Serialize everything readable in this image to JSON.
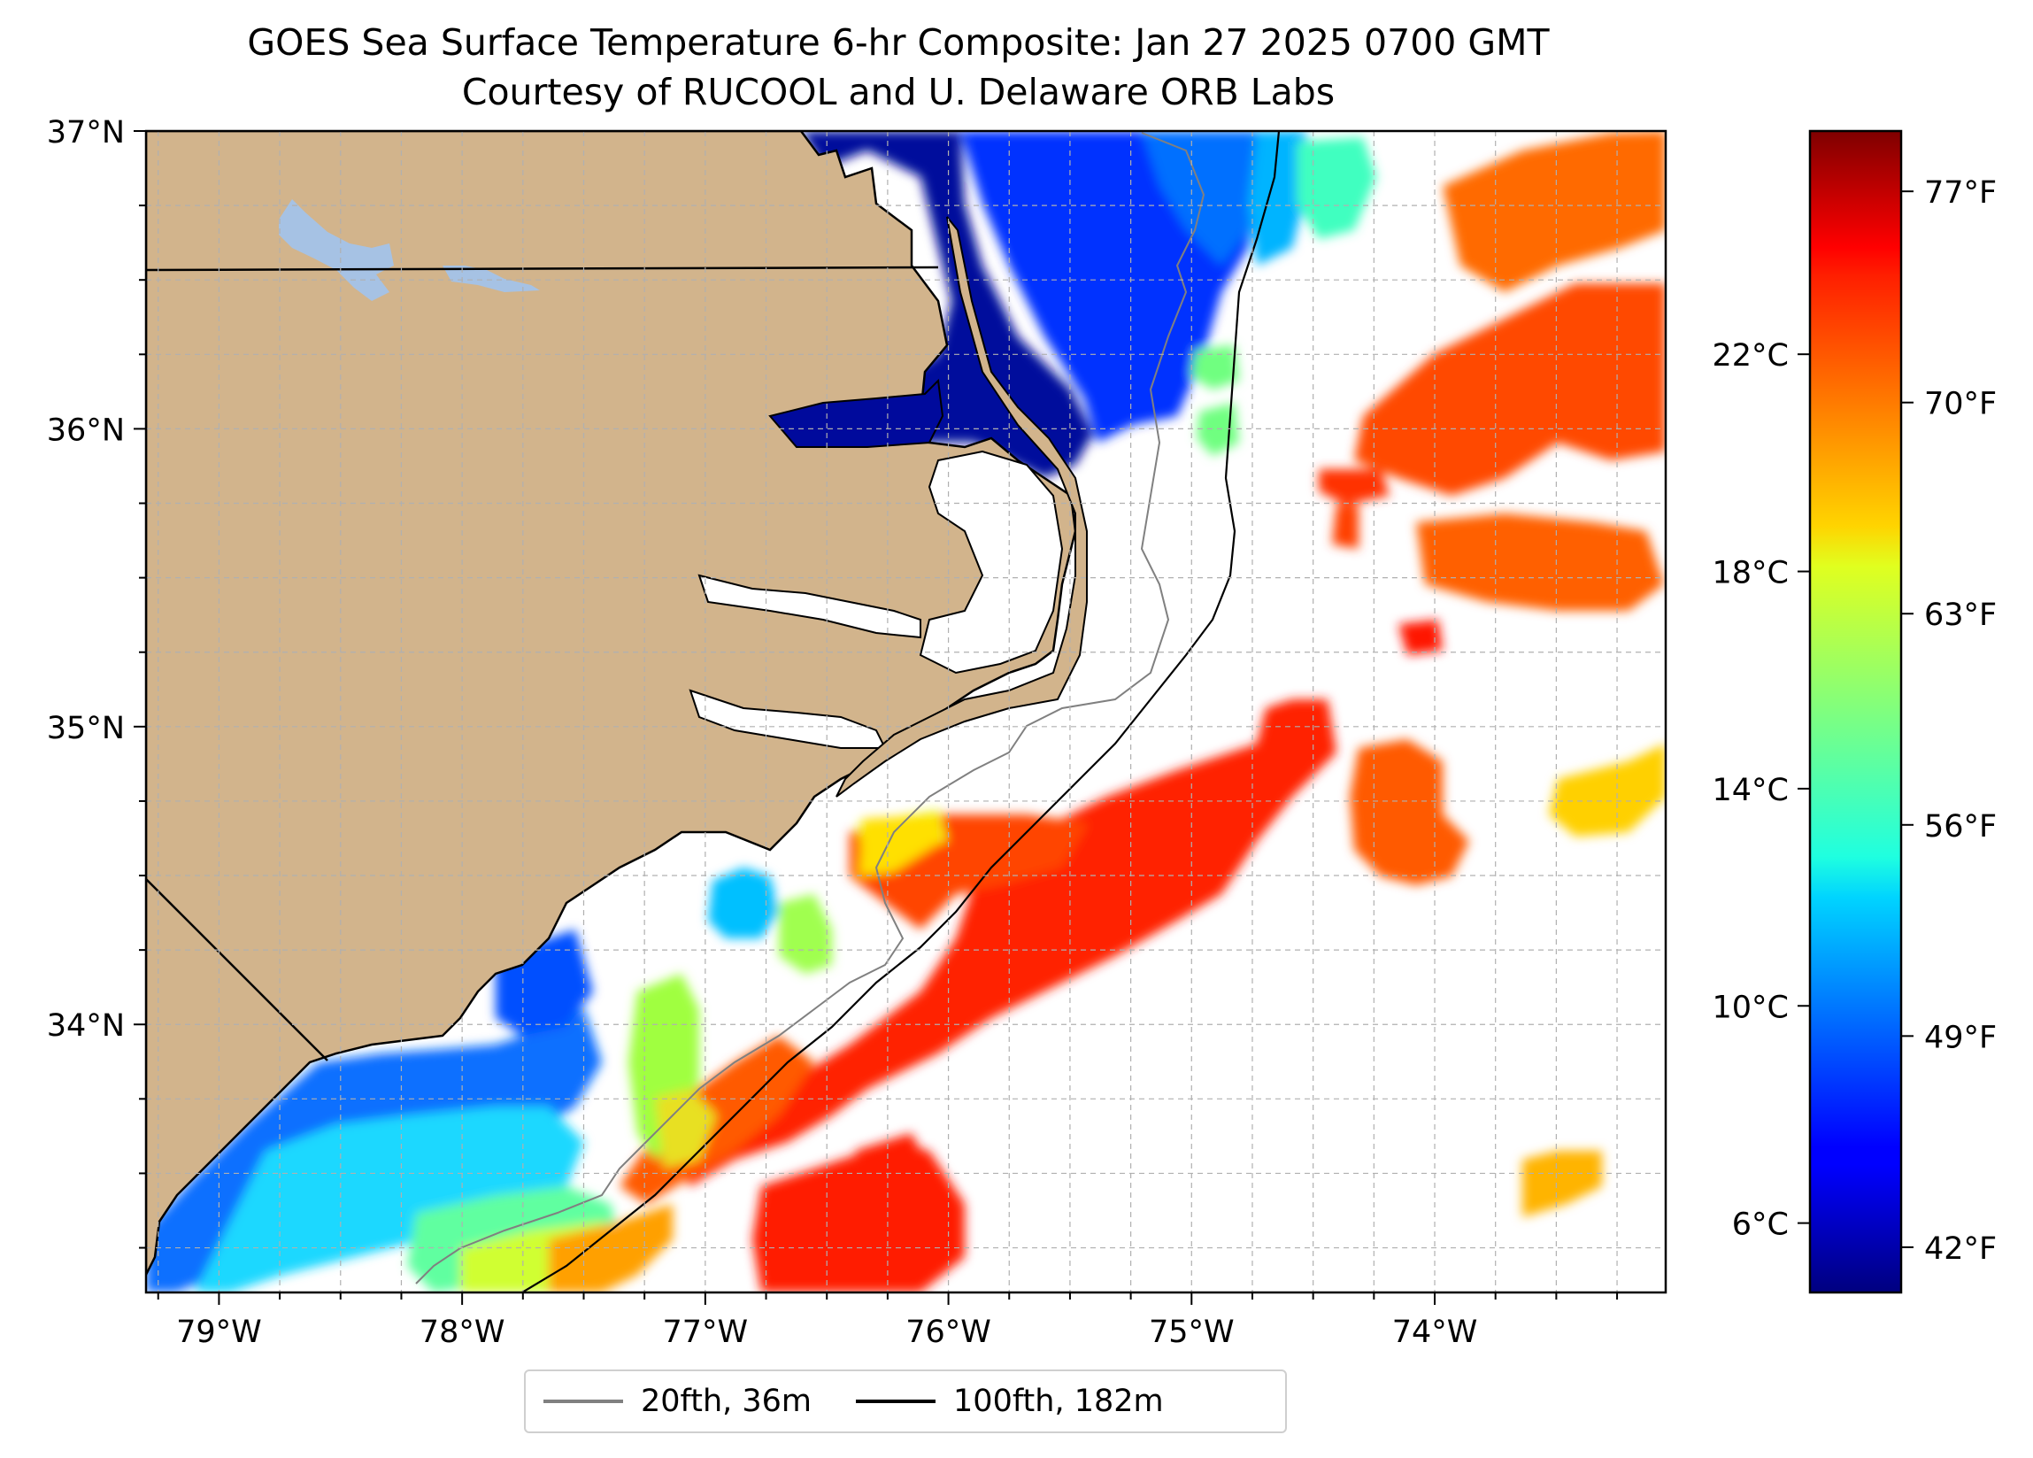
{
  "title": {
    "line1": "GOES Sea Surface Temperature 6-hr Composite: Jan 27 2025 0700 GMT",
    "line2": "Courtesy of RUCOOL and U. Delaware ORB Labs"
  },
  "map": {
    "lon_range": [
      -79.3,
      -73.05
    ],
    "lat_range": [
      33.1,
      37.0
    ],
    "lon_ticks": [
      "79°W",
      "78°W",
      "77°W",
      "76°W",
      "75°W",
      "74°W"
    ],
    "lat_ticks": [
      "37°N",
      "36°N",
      "35°N",
      "34°N"
    ],
    "gridlines": true,
    "colors": {
      "land": "#d2b48c",
      "lakes": "#a6c2e4",
      "ocean_no_data": "#ffffff",
      "grid": "#b0b0b0"
    }
  },
  "colorbar": {
    "colormap": "jet",
    "range_f": [
      40.5,
      79
    ],
    "celsius_ticks": [
      "22°C",
      "18°C",
      "14°C",
      "10°C",
      "6°C"
    ],
    "celsius_values": [
      22,
      18,
      14,
      10,
      6
    ],
    "fahrenheit_ticks": [
      "77°F",
      "70°F",
      "63°F",
      "56°F",
      "49°F",
      "42°F"
    ],
    "fahrenheit_values": [
      77,
      70,
      63,
      56,
      49,
      42
    ]
  },
  "legend": [
    {
      "label": "20fth, 36m",
      "color": "#808080"
    },
    {
      "label": "100fth, 182m",
      "color": "#000000"
    }
  ]
}
